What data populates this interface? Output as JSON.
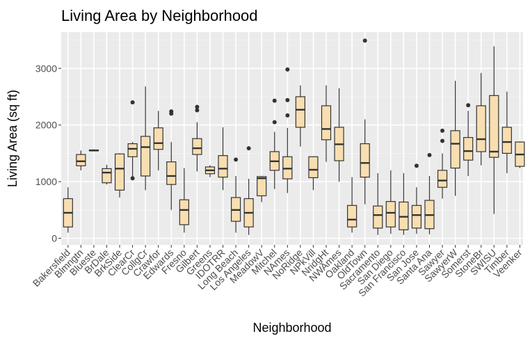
{
  "chart_data": {
    "type": "box",
    "title": "Living Area by Neighborhood",
    "xlabel": "Neighborhood",
    "ylabel": "Living Area (sq ft)",
    "ylim": [
      -100,
      3650
    ],
    "yticks": [
      0,
      1000,
      2000,
      3000
    ],
    "grid": true,
    "colors": {
      "panel": "#ebebeb",
      "grid_major": "#ffffff",
      "grid_minor": "#f5f5f5",
      "box_fill": "#f8deb0",
      "box_stroke": "#333333",
      "text": "#4d4d4d"
    },
    "boxes": [
      {
        "category": "Bakersfield",
        "min": 100,
        "q1": 200,
        "median": 450,
        "q3": 700,
        "max": 900,
        "outliers": []
      },
      {
        "category": "Blmngtn",
        "min": 1200,
        "q1": 1280,
        "median": 1360,
        "q3": 1480,
        "max": 1550,
        "outliers": []
      },
      {
        "category": "Blueste",
        "min": 1540,
        "q1": 1545,
        "median": 1550,
        "q3": 1560,
        "max": 1570,
        "outliers": []
      },
      {
        "category": "BrDale",
        "min": 950,
        "q1": 980,
        "median": 1160,
        "q3": 1230,
        "max": 1300,
        "outliers": []
      },
      {
        "category": "BrkSide",
        "min": 720,
        "q1": 850,
        "median": 1230,
        "q3": 1490,
        "max": 1500,
        "outliers": []
      },
      {
        "category": "ClearCr",
        "min": 1080,
        "q1": 1440,
        "median": 1580,
        "q3": 1670,
        "max": 1700,
        "outliers": [
          2400,
          1060
        ]
      },
      {
        "category": "CollgCr",
        "min": 850,
        "q1": 1100,
        "median": 1610,
        "q3": 1800,
        "max": 2680,
        "outliers": []
      },
      {
        "category": "Crawfor",
        "min": 1200,
        "q1": 1570,
        "median": 1680,
        "q3": 1950,
        "max": 2250,
        "outliers": []
      },
      {
        "category": "Edwards",
        "min": 500,
        "q1": 950,
        "median": 1100,
        "q3": 1350,
        "max": 1700,
        "outliers": [
          2200,
          2240
        ]
      },
      {
        "category": "Fresno",
        "min": 100,
        "q1": 240,
        "median": 500,
        "q3": 680,
        "max": 1240,
        "outliers": []
      },
      {
        "category": "Gilbert",
        "min": 1180,
        "q1": 1480,
        "median": 1590,
        "q3": 1760,
        "max": 2050,
        "outliers": [
          2260,
          2320
        ]
      },
      {
        "category": "Greens",
        "min": 1080,
        "q1": 1140,
        "median": 1200,
        "q3": 1260,
        "max": 1290,
        "outliers": []
      },
      {
        "category": "IDOTRR",
        "min": 850,
        "q1": 1080,
        "median": 1230,
        "q3": 1460,
        "max": 1960,
        "outliers": []
      },
      {
        "category": "Long Beach",
        "min": 100,
        "q1": 300,
        "median": 500,
        "q3": 720,
        "max": 1100,
        "outliers": [
          1390
        ]
      },
      {
        "category": "Los Angeles",
        "min": 60,
        "q1": 200,
        "median": 450,
        "q3": 700,
        "max": 1050,
        "outliers": [
          1590
        ]
      },
      {
        "category": "MeadowV",
        "min": 640,
        "q1": 750,
        "median": 1060,
        "q3": 1090,
        "max": 1100,
        "outliers": []
      },
      {
        "category": "Mitchel",
        "min": 870,
        "q1": 1200,
        "median": 1360,
        "q3": 1530,
        "max": 1880,
        "outliers": [
          2050,
          2430
        ]
      },
      {
        "category": "NAmes",
        "min": 800,
        "q1": 1050,
        "median": 1230,
        "q3": 1440,
        "max": 1950,
        "outliers": [
          2440,
          2170,
          2980
        ]
      },
      {
        "category": "NoRidge",
        "min": 1620,
        "q1": 1960,
        "median": 2270,
        "q3": 2500,
        "max": 2700,
        "outliers": []
      },
      {
        "category": "NPkVill",
        "min": 850,
        "q1": 1070,
        "median": 1210,
        "q3": 1440,
        "max": 1450,
        "outliers": []
      },
      {
        "category": "NridgHt",
        "min": 1350,
        "q1": 1740,
        "median": 1930,
        "q3": 2340,
        "max": 2700,
        "outliers": []
      },
      {
        "category": "NWAmes",
        "min": 1000,
        "q1": 1370,
        "median": 1660,
        "q3": 1960,
        "max": 2650,
        "outliers": []
      },
      {
        "category": "Oakland",
        "min": 100,
        "q1": 200,
        "median": 330,
        "q3": 580,
        "max": 1080,
        "outliers": []
      },
      {
        "category": "OldTown",
        "min": 600,
        "q1": 1080,
        "median": 1330,
        "q3": 1670,
        "max": 2100,
        "outliers": [
          3490
        ]
      },
      {
        "category": "Sacramento",
        "min": 60,
        "q1": 180,
        "median": 410,
        "q3": 570,
        "max": 1150,
        "outliers": []
      },
      {
        "category": "San Diego",
        "min": 80,
        "q1": 200,
        "median": 450,
        "q3": 650,
        "max": 1200,
        "outliers": []
      },
      {
        "category": "San Francisco",
        "min": 60,
        "q1": 150,
        "median": 380,
        "q3": 640,
        "max": 1150,
        "outliers": []
      },
      {
        "category": "San Jose",
        "min": 80,
        "q1": 180,
        "median": 410,
        "q3": 580,
        "max": 900,
        "outliers": [
          1280
        ]
      },
      {
        "category": "Santa Ana",
        "min": 70,
        "q1": 170,
        "median": 410,
        "q3": 670,
        "max": 1100,
        "outliers": [
          1470
        ]
      },
      {
        "category": "Sawyer",
        "min": 700,
        "q1": 900,
        "median": 1020,
        "q3": 1200,
        "max": 1500,
        "outliers": [
          1720,
          1900
        ]
      },
      {
        "category": "SawyerW",
        "min": 750,
        "q1": 1240,
        "median": 1670,
        "q3": 1900,
        "max": 2780,
        "outliers": []
      },
      {
        "category": "Somerst",
        "min": 1100,
        "q1": 1380,
        "median": 1540,
        "q3": 1780,
        "max": 2250,
        "outliers": [
          2350
        ]
      },
      {
        "category": "StoneBr",
        "min": 1290,
        "q1": 1530,
        "median": 1750,
        "q3": 2340,
        "max": 2920,
        "outliers": []
      },
      {
        "category": "SWISU",
        "min": 430,
        "q1": 1430,
        "median": 1530,
        "q3": 2520,
        "max": 3390,
        "outliers": []
      },
      {
        "category": "Timber",
        "min": 1150,
        "q1": 1500,
        "median": 1700,
        "q3": 1960,
        "max": 2590,
        "outliers": []
      },
      {
        "category": "Veenker",
        "min": 1240,
        "q1": 1270,
        "median": 1480,
        "q3": 1700,
        "max": 1710,
        "outliers": []
      }
    ]
  }
}
